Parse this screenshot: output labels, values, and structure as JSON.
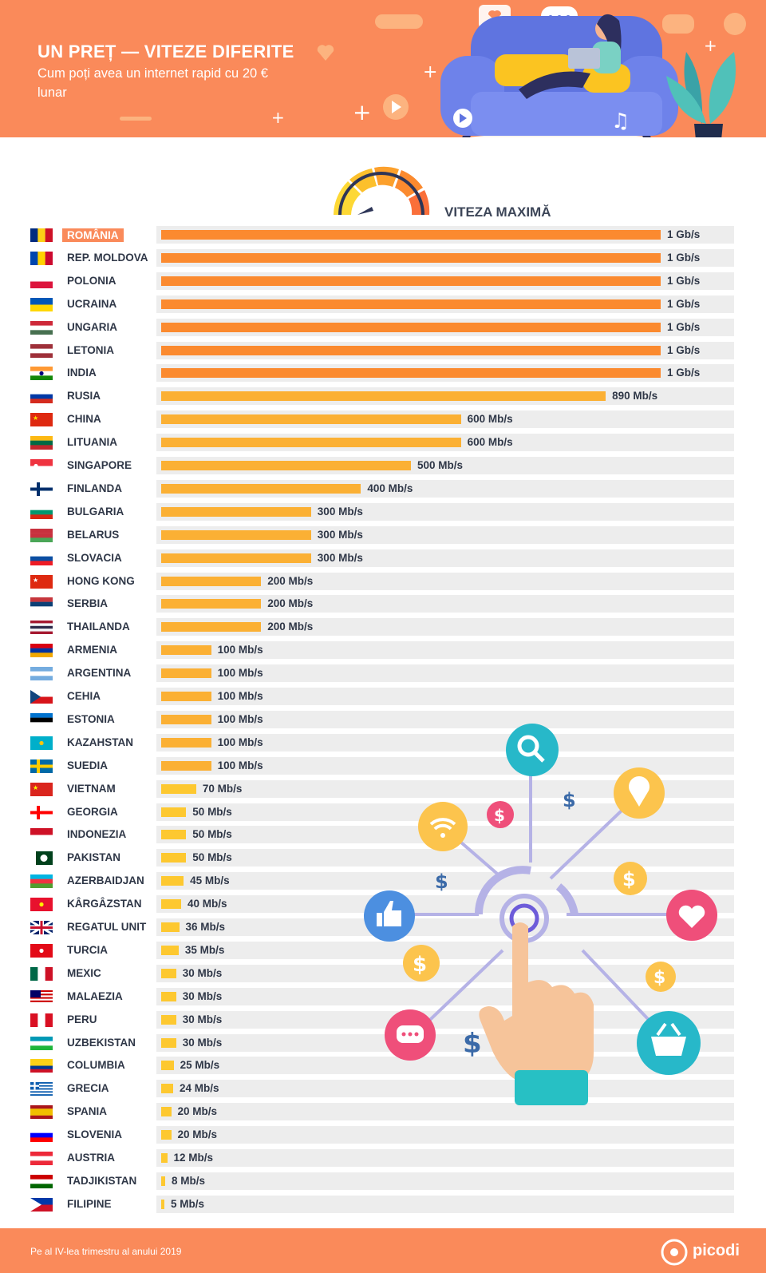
{
  "header": {
    "title": "UN PREȚ — VITEZE DIFERITE",
    "subtitle": "Cum poți avea un internet rapid cu 20 € lunar"
  },
  "chart_data": {
    "type": "bar",
    "orientation": "horizontal",
    "title": "VITEZA MAXIMĂ",
    "unit": "Mb/s",
    "highlight": "ROMÂNIA",
    "categories": [
      "ROMÂNIA",
      "REP. MOLDOVA",
      "POLONIA",
      "UCRAINA",
      "UNGARIA",
      "LETONIA",
      "INDIA",
      "RUSIA",
      "CHINA",
      "LITUANIA",
      "SINGAPORE",
      "FINLANDA",
      "BULGARIA",
      "BELARUS",
      "SLOVACIA",
      "HONG KONG",
      "SERBIA",
      "THAILANDA",
      "ARMENIA",
      "ARGENTINA",
      "CEHIA",
      "ESTONIA",
      "KAZAHSTAN",
      "SUEDIA",
      "VIETNAM",
      "GEORGIA",
      "INDONEZIA",
      "PAKISTAN",
      "AZERBAIDJAN",
      "KÂRGÂZSTAN",
      "REGATUL UNIT",
      "TURCIA",
      "MEXIC",
      "MALAEZIA",
      "PERU",
      "UZBEKISTAN",
      "COLUMBIA",
      "GRECIA",
      "SPANIA",
      "SLOVENIA",
      "AUSTRIA",
      "TADJIKISTAN",
      "FILIPINE"
    ],
    "values": [
      1000,
      1000,
      1000,
      1000,
      1000,
      1000,
      1000,
      890,
      600,
      600,
      500,
      400,
      300,
      300,
      300,
      200,
      200,
      200,
      100,
      100,
      100,
      100,
      100,
      100,
      70,
      50,
      50,
      50,
      45,
      40,
      36,
      35,
      30,
      30,
      30,
      30,
      25,
      24,
      20,
      20,
      12,
      8,
      5
    ],
    "labels": [
      "1 Gb/s",
      "1 Gb/s",
      "1 Gb/s",
      "1 Gb/s",
      "1 Gb/s",
      "1 Gb/s",
      "1 Gb/s",
      "890 Mb/s",
      "600 Mb/s",
      "600 Mb/s",
      "500 Mb/s",
      "400 Mb/s",
      "300 Mb/s",
      "300 Mb/s",
      "300 Mb/s",
      "200 Mb/s",
      "200 Mb/s",
      "200 Mb/s",
      "100 Mb/s",
      "100 Mb/s",
      "100 Mb/s",
      "100 Mb/s",
      "100 Mb/s",
      "100 Mb/s",
      "70 Mb/s",
      "50 Mb/s",
      "50 Mb/s",
      "50 Mb/s",
      "45 Mb/s",
      "40 Mb/s",
      "36 Mb/s",
      "35 Mb/s",
      "30 Mb/s",
      "30 Mb/s",
      "30 Mb/s",
      "30 Mb/s",
      "25 Mb/s",
      "24 Mb/s",
      "20 Mb/s",
      "20 Mb/s",
      "12 Mb/s",
      "8 Mb/s",
      "5 Mb/s"
    ],
    "xlim": [
      0,
      1000
    ],
    "colors": {
      "gb": "#fb8a2f",
      "high": "#fbb034",
      "low": "#fdc830",
      "track": "#ededed",
      "highlight": "#fa8a5a"
    }
  },
  "flags": [
    {
      "type": "v",
      "c": [
        "#002b7f",
        "#fcd116",
        "#ce1126"
      ]
    },
    {
      "type": "v",
      "c": [
        "#0046ae",
        "#ffd200",
        "#cc092f"
      ]
    },
    {
      "type": "h",
      "c": [
        "#ffffff",
        "#dc143c"
      ]
    },
    {
      "type": "h",
      "c": [
        "#0057b7",
        "#ffd700"
      ]
    },
    {
      "type": "h",
      "c": [
        "#ce2939",
        "#ffffff",
        "#477050"
      ]
    },
    {
      "type": "h",
      "c": [
        "#9e3039",
        "#ffffff",
        "#9e3039"
      ]
    },
    {
      "type": "h",
      "c": [
        "#ff9933",
        "#ffffff",
        "#138808"
      ],
      "dot": "#000080"
    },
    {
      "type": "h",
      "c": [
        "#ffffff",
        "#0039a6",
        "#d52b1e"
      ]
    },
    {
      "type": "h",
      "c": [
        "#de2910"
      ],
      "star": "#ffde00"
    },
    {
      "type": "h",
      "c": [
        "#fdb913",
        "#006a44",
        "#c1272d"
      ]
    },
    {
      "type": "h",
      "c": [
        "#ef3340",
        "#ffffff"
      ],
      "dot": "#ffffff"
    },
    {
      "type": "cross",
      "c": [
        "#ffffff",
        "#002f6c"
      ]
    },
    {
      "type": "h",
      "c": [
        "#ffffff",
        "#00966e",
        "#d62612"
      ]
    },
    {
      "type": "h",
      "c": [
        "#c8313e",
        "#c8313e",
        "#4aa657"
      ]
    },
    {
      "type": "h",
      "c": [
        "#ffffff",
        "#0b4ea2",
        "#ee1c25"
      ]
    },
    {
      "type": "h",
      "c": [
        "#de2910"
      ],
      "star": "#ffffff"
    },
    {
      "type": "h",
      "c": [
        "#c6363c",
        "#0c4076",
        "#ffffff"
      ]
    },
    {
      "type": "h5",
      "c": [
        "#a51931",
        "#f4f5f8",
        "#2d2a4a",
        "#f4f5f8",
        "#a51931"
      ]
    },
    {
      "type": "h",
      "c": [
        "#d90012",
        "#0033a0",
        "#f2a800"
      ]
    },
    {
      "type": "h",
      "c": [
        "#74acdf",
        "#ffffff",
        "#74acdf"
      ]
    },
    {
      "type": "cz",
      "c": [
        "#ffffff",
        "#d7141a",
        "#11457e"
      ]
    },
    {
      "type": "h",
      "c": [
        "#0072ce",
        "#000000",
        "#ffffff"
      ]
    },
    {
      "type": "h",
      "c": [
        "#00afca"
      ],
      "dot": "#fec50c"
    },
    {
      "type": "cross",
      "c": [
        "#006aa7",
        "#fecc00"
      ]
    },
    {
      "type": "h",
      "c": [
        "#da251d"
      ],
      "star": "#ffff00"
    },
    {
      "type": "cross",
      "c": [
        "#ffffff",
        "#ff0000"
      ]
    },
    {
      "type": "h",
      "c": [
        "#ce1126",
        "#ffffff"
      ]
    },
    {
      "type": "pk",
      "c": [
        "#01411c",
        "#ffffff"
      ]
    },
    {
      "type": "h",
      "c": [
        "#00b5e2",
        "#ef3340",
        "#509e2f"
      ]
    },
    {
      "type": "h",
      "c": [
        "#e8112d"
      ],
      "dot": "#ffef00"
    },
    {
      "type": "uk",
      "c": [
        "#012169",
        "#ffffff",
        "#c8102e"
      ]
    },
    {
      "type": "h",
      "c": [
        "#e30a17"
      ],
      "dot": "#ffffff"
    },
    {
      "type": "v",
      "c": [
        "#006847",
        "#ffffff",
        "#ce1126"
      ]
    },
    {
      "type": "my",
      "c": [
        "#cc0001",
        "#ffffff",
        "#010066"
      ]
    },
    {
      "type": "v",
      "c": [
        "#d91023",
        "#ffffff",
        "#d91023"
      ]
    },
    {
      "type": "h",
      "c": [
        "#0099b5",
        "#ffffff",
        "#1eb53a"
      ]
    },
    {
      "type": "h",
      "c": [
        "#fcd116",
        "#fcd116",
        "#003893",
        "#ce1126"
      ]
    },
    {
      "type": "gr",
      "c": [
        "#0d5eaf",
        "#ffffff"
      ]
    },
    {
      "type": "h",
      "c": [
        "#aa151b",
        "#f1bf00",
        "#f1bf00",
        "#aa151b"
      ]
    },
    {
      "type": "h",
      "c": [
        "#ffffff",
        "#0000ff",
        "#ff0000"
      ]
    },
    {
      "type": "h",
      "c": [
        "#ed2939",
        "#ffffff",
        "#ed2939"
      ]
    },
    {
      "type": "h",
      "c": [
        "#cc0000",
        "#ffffff",
        "#006600"
      ]
    },
    {
      "type": "ph",
      "c": [
        "#0038a8",
        "#ce1126",
        "#ffffff"
      ]
    }
  ],
  "footer": {
    "note": "Pe al IV-lea trimestru al anului 2019",
    "brand": "picodi"
  }
}
